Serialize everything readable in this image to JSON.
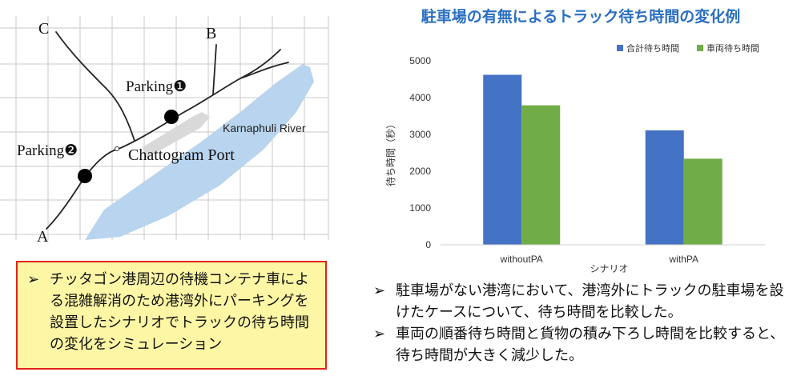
{
  "map": {
    "labels": {
      "a": "A",
      "b": "B",
      "c": "C",
      "parking1": "Parking❶",
      "parking2": "Parking❷",
      "port": "Chattogram Port",
      "river": "Karnaphuli River"
    },
    "colors": {
      "river": "#b8d4ee",
      "grid": "#c9c9c9",
      "port_block": "#d9d9d9"
    }
  },
  "note": {
    "bullet": "➢",
    "text": "チッタゴン港周辺の待機コンテナ車による混雑解消のため港湾外にパーキングを設置したシナリオでトラックの待ち時間の変化をシミュレーション"
  },
  "chart_data": {
    "type": "bar",
    "title": "駐車場の有無によるトラック待ち時間の変化例",
    "xlabel": "シナリオ",
    "ylabel": "待ち時間（秒）",
    "categories": [
      "withoutPA",
      "withPA"
    ],
    "series": [
      {
        "name": "合計待ち時間",
        "color": "#4472c4",
        "values": [
          4620,
          3110
        ]
      },
      {
        "name": "車両待ち時間",
        "color": "#70ad47",
        "values": [
          3790,
          2340
        ]
      }
    ],
    "ylim": [
      0,
      5000
    ],
    "yticks": [
      "0",
      "1000",
      "2000",
      "3000",
      "4000",
      "5000"
    ],
    "legend": "top-right",
    "grid": false
  },
  "summary": {
    "items": [
      {
        "bullet": "➢",
        "text": "駐車場がない港湾において、港湾外にトラックの駐車場を設けたケースについて、待ち時間を比較した。"
      },
      {
        "bullet": "➢",
        "text": "車両の順番待ち時間と貨物の積み下ろし時間を比較すると、待ち時間が大きく減少した。"
      }
    ]
  }
}
